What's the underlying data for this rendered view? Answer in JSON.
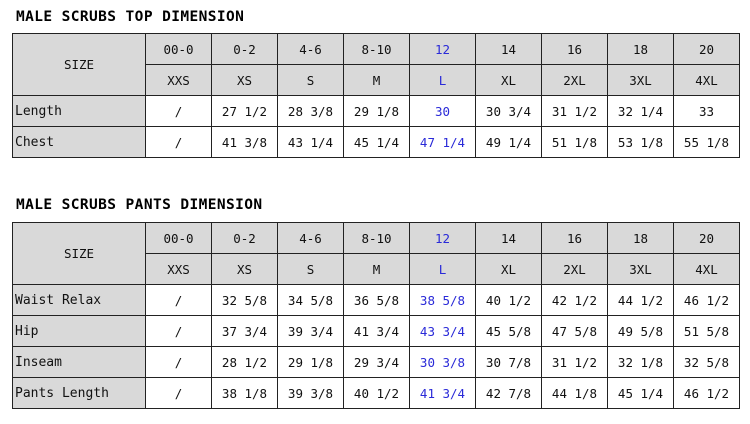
{
  "top": {
    "title": "MALE SCRUBS TOP DIMENSION",
    "size_label": "SIZE",
    "numbers": [
      "00-0",
      "0-2",
      "4-6",
      "8-10",
      "12",
      "14",
      "16",
      "18",
      "20"
    ],
    "letters": [
      "XXS",
      "XS",
      "S",
      "M",
      "L",
      "XL",
      "2XL",
      "3XL",
      "4XL"
    ],
    "rows": [
      {
        "label": "Length",
        "values": [
          "/",
          "27 1/2",
          "28 3/8",
          "29 1/8",
          "30",
          "30 3/4",
          "31 1/2",
          "32 1/4",
          "33"
        ]
      },
      {
        "label": "Chest",
        "values": [
          "/",
          "41 3/8",
          "43 1/4",
          "45 1/4",
          "47 1/4",
          "49 1/4",
          "51 1/8",
          "53 1/8",
          "55 1/8"
        ]
      }
    ]
  },
  "pants": {
    "title": "MALE SCRUBS PANTS DIMENSION",
    "size_label": "SIZE",
    "numbers": [
      "00-0",
      "0-2",
      "4-6",
      "8-10",
      "12",
      "14",
      "16",
      "18",
      "20"
    ],
    "letters": [
      "XXS",
      "XS",
      "S",
      "M",
      "L",
      "XL",
      "2XL",
      "3XL",
      "4XL"
    ],
    "rows": [
      {
        "label": "Waist Relax",
        "values": [
          "/",
          "32 5/8",
          "34 5/8",
          "36 5/8",
          "38 5/8",
          "40 1/2",
          "42 1/2",
          "44 1/2",
          "46 1/2"
        ]
      },
      {
        "label": "Hip",
        "values": [
          "/",
          "37 3/4",
          "39 3/4",
          "41 3/4",
          "43 3/4",
          "45 5/8",
          "47 5/8",
          "49 5/8",
          "51 5/8"
        ]
      },
      {
        "label": "Inseam",
        "values": [
          "/",
          "28 1/2",
          "29 1/8",
          "29 3/4",
          "30 3/8",
          "30 7/8",
          "31 1/2",
          "32 1/8",
          "32 5/8"
        ]
      },
      {
        "label": "Pants Length",
        "values": [
          "/",
          "38 1/8",
          "39 3/8",
          "40 1/2",
          "41 3/4",
          "42 7/8",
          "44 1/8",
          "45 1/4",
          "46 1/2"
        ]
      }
    ]
  },
  "colors": {
    "highlight": "#2a2ad8",
    "header_gray": "#d9d9d9",
    "border": "#222222"
  }
}
